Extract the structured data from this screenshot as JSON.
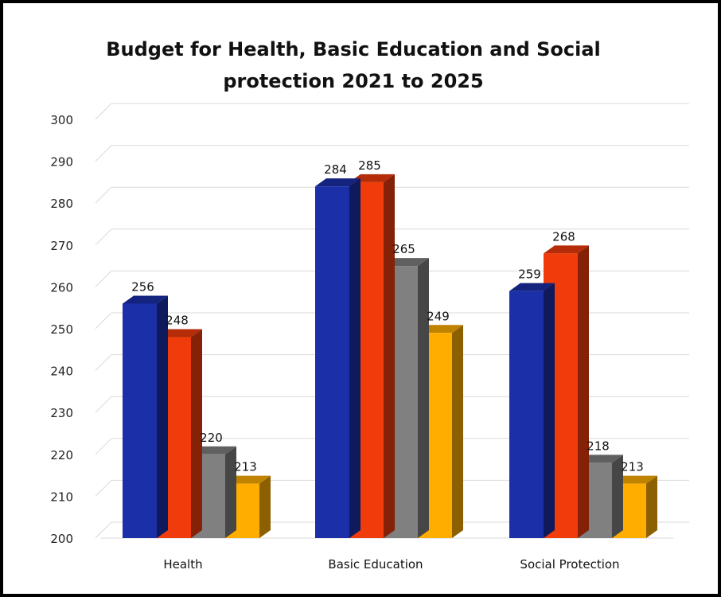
{
  "chart_data": {
    "type": "bar",
    "title": "Budget for Health, Basic Education and Social protection 2021 to 2025",
    "categories": [
      "Health",
      "Basic Education",
      "Social Protection"
    ],
    "series": [
      {
        "values": [
          256,
          284,
          259
        ],
        "color": "#1a2fa8"
      },
      {
        "values": [
          248,
          285,
          268
        ],
        "color": "#f03c0a"
      },
      {
        "values": [
          220,
          265,
          218
        ],
        "color": "#808080"
      },
      {
        "values": [
          213,
          249,
          213
        ],
        "color": "#ffae00"
      }
    ],
    "ylim": [
      200,
      300
    ],
    "yticks": [
      "200",
      "210",
      "220",
      "230",
      "240",
      "250",
      "260",
      "270",
      "280",
      "290",
      "300"
    ],
    "xlabel": "",
    "ylabel": "",
    "grid": true,
    "three_d": true
  }
}
